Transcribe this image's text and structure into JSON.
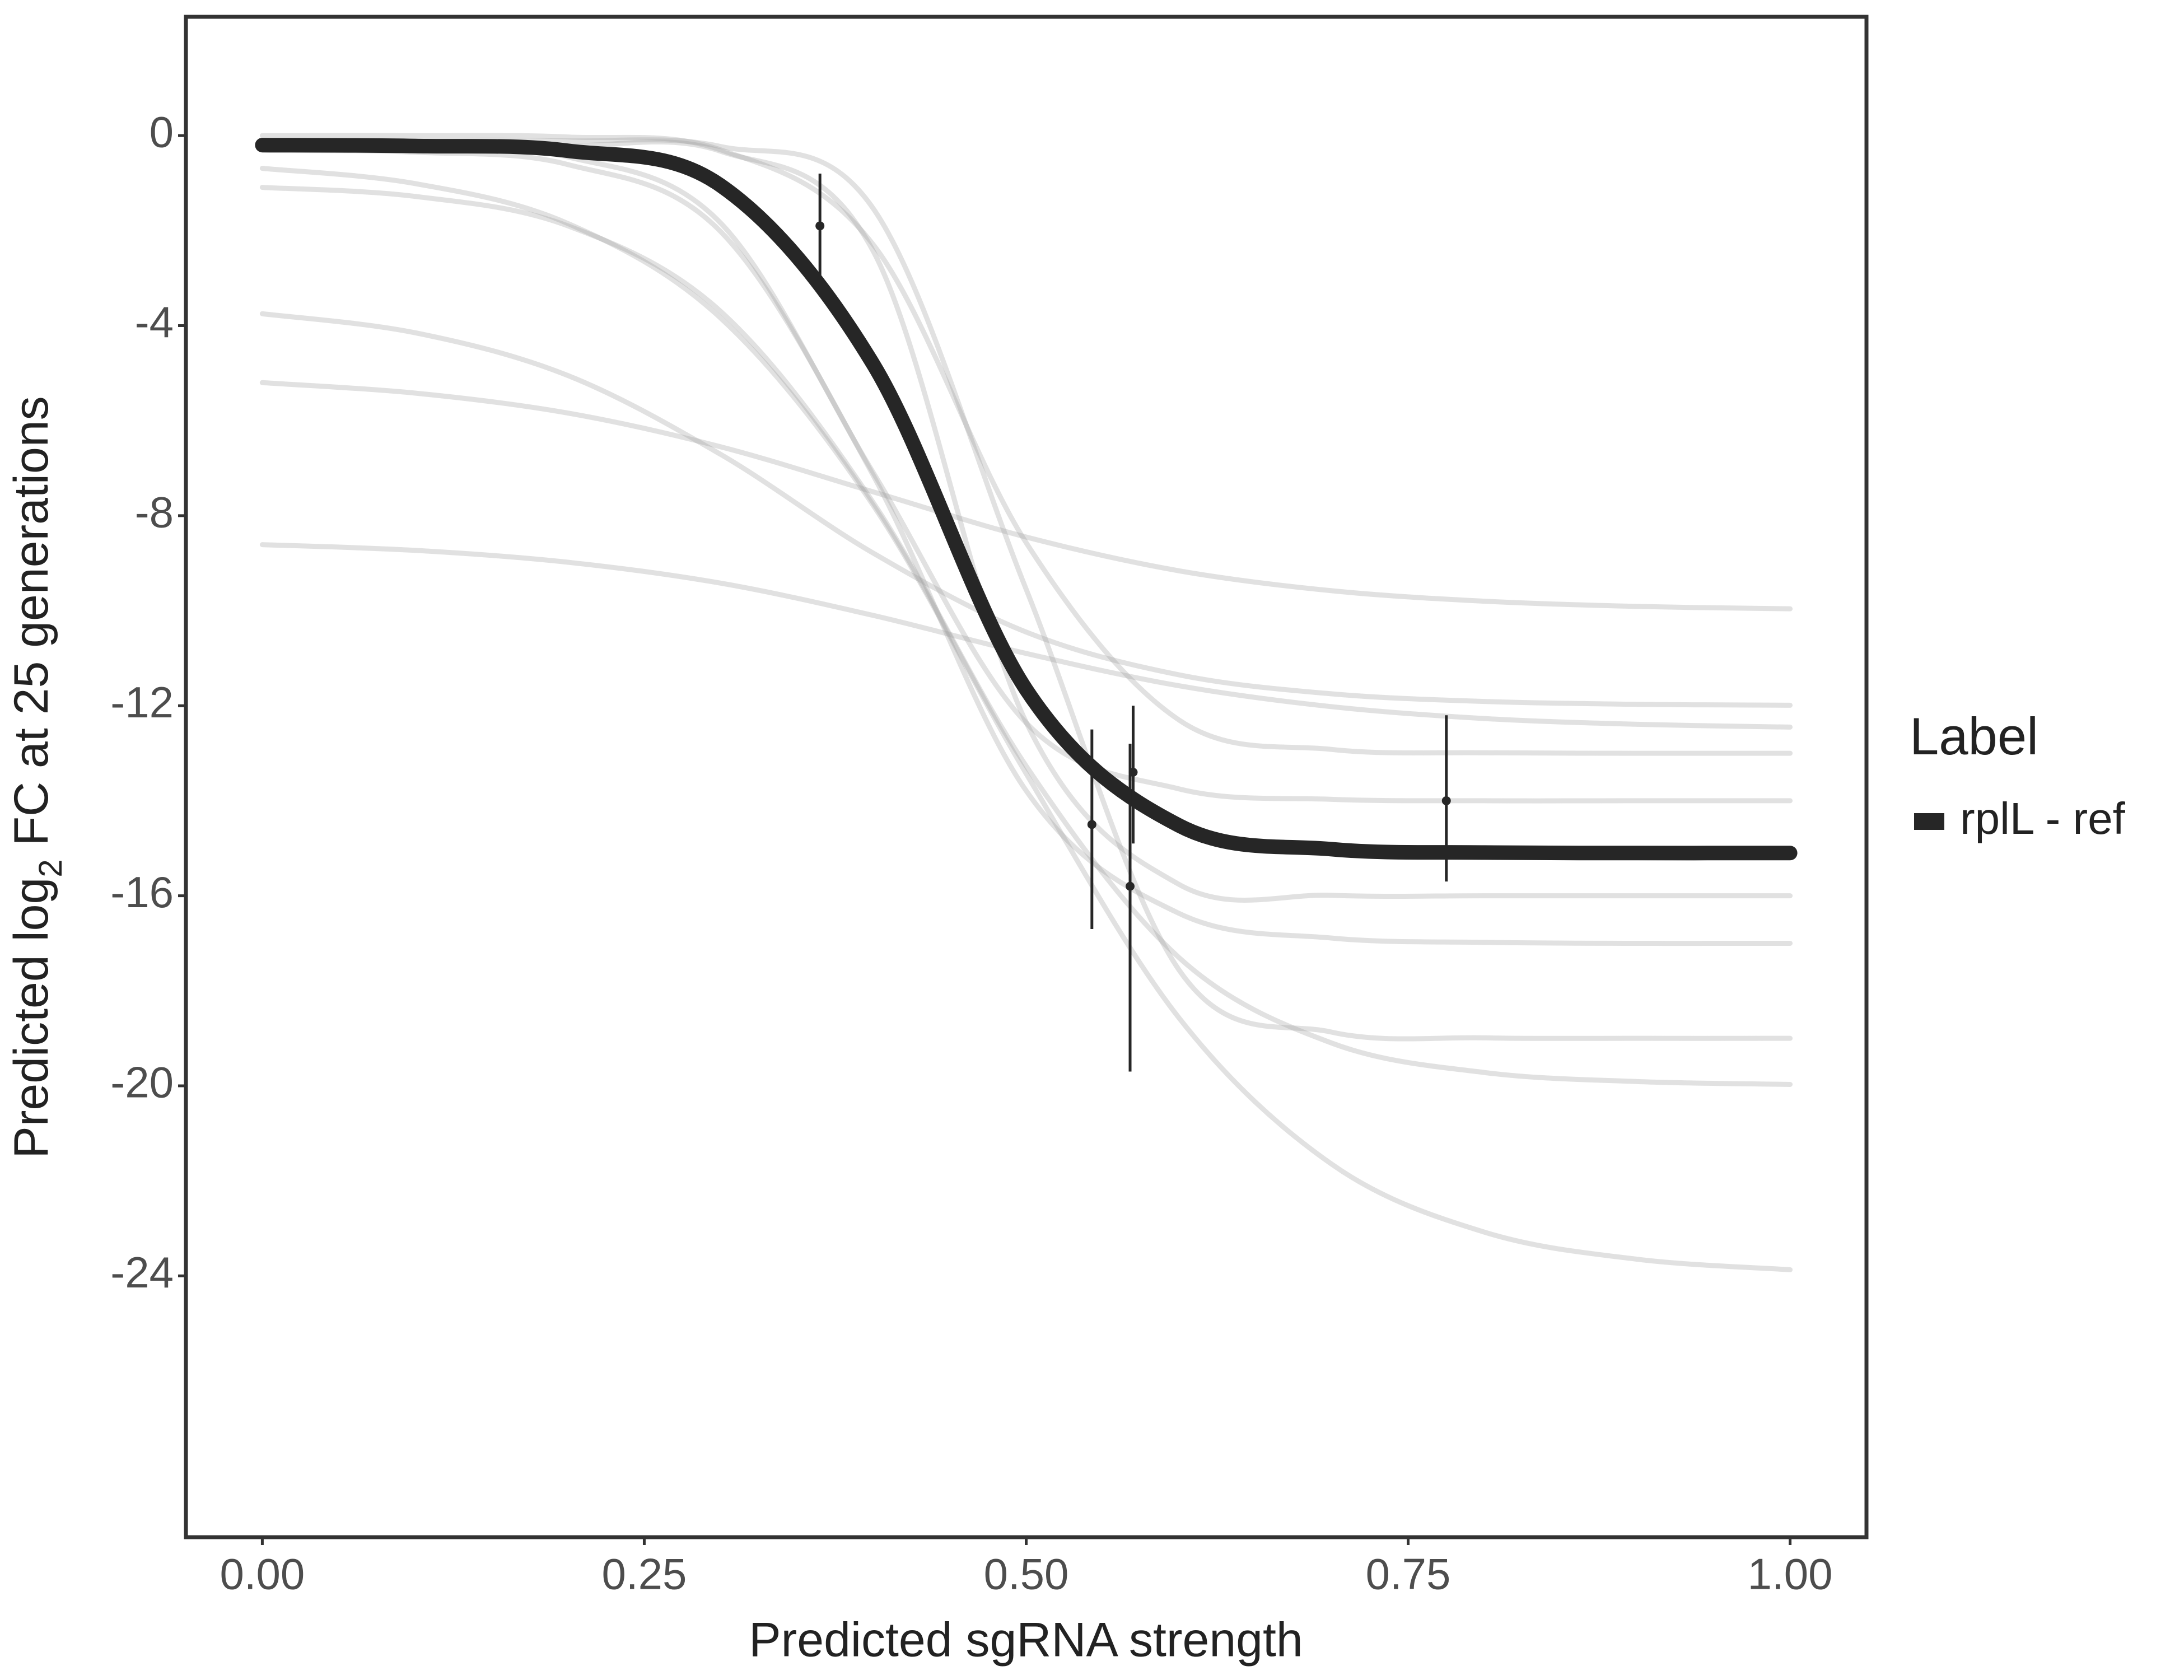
{
  "chart_data": {
    "type": "line",
    "x_label": "Predicted sgRNA strength",
    "y_label": {
      "prefix": "Predicted  log",
      "subscript": "2",
      "suffix": " FC at 25 generations"
    },
    "legend_title": "Label",
    "x": [
      0,
      0.1,
      0.2,
      0.3,
      0.4,
      0.5,
      0.6,
      0.7,
      0.8,
      0.9,
      1
    ],
    "xlim": [
      -0.05,
      1.05
    ],
    "xticks": [
      {
        "value": 0,
        "label": "0.00"
      },
      0.25,
      {
        "value": 0.5,
        "label": "0.50"
      },
      0.75,
      {
        "value": 1,
        "label": "1.00"
      }
    ],
    "ylim": [
      -29.5,
      2.5
    ],
    "yticks": [
      0,
      -4,
      -8,
      -12,
      -16,
      -20,
      -24
    ],
    "series": [
      {
        "name": "rplL - ref",
        "color": "#262626",
        "values": [
          -0.2,
          -0.22,
          -0.32,
          -1.05,
          -4.82,
          -11.66,
          -14.52,
          -15.02,
          -15.09,
          -15.1,
          -15.1
        ]
      }
    ],
    "draws": {
      "color": "#9a9a9a",
      "values": [
        [
          0,
          0,
          -0.03,
          -0.3,
          -2.3,
          -8.57,
          -12.3,
          -12.92,
          -12.99,
          -13,
          -13
        ],
        [
          -0.31,
          -0.35,
          -0.61,
          -2.02,
          -7.16,
          -13.79,
          -16.37,
          -16.89,
          -16.98,
          -17,
          -17
        ],
        [
          -1.09,
          -1.28,
          -1.9,
          -3.7,
          -7.73,
          -13.27,
          -17.3,
          -19.1,
          -19.72,
          -19.91,
          -19.97
        ],
        [
          -3.75,
          -4.15,
          -5.05,
          -6.71,
          -8.79,
          -10.45,
          -11.35,
          -11.75,
          -11.91,
          -11.97,
          -11.99
        ],
        [
          -0.1,
          -0.1,
          -0.11,
          -0.23,
          -1.54,
          -9.55,
          -17.56,
          -18.87,
          -18.99,
          -19,
          -19
        ],
        [
          -5.2,
          -5.42,
          -5.84,
          -6.55,
          -7.5,
          -8.45,
          -9.16,
          -9.58,
          -9.8,
          -9.91,
          -9.96
        ],
        [
          -0.69,
          -1.01,
          -1.85,
          -3.84,
          -7.79,
          -13.43,
          -18.57,
          -21.65,
          -23.08,
          -23.65,
          -23.87
        ],
        [
          -0.2,
          -0.23,
          -0.45,
          -1.84,
          -7.1,
          -12.36,
          -13.75,
          -13.97,
          -14,
          -14,
          -14
        ],
        [
          -8.61,
          -8.73,
          -8.98,
          -9.42,
          -10.1,
          -10.9,
          -11.58,
          -12.02,
          -12.27,
          -12.39,
          -12.45
        ],
        [
          -0.2,
          -0.2,
          -0.21,
          -0.33,
          -2.44,
          -12.35,
          -15.76,
          -15.99,
          -16,
          -16,
          -16
        ]
      ]
    },
    "points": {
      "color": "#262626",
      "x": [
        0.365,
        0.543,
        0.57,
        0.568,
        0.775
      ],
      "y": [
        -1.9,
        -14.5,
        -13.4,
        -15.8,
        -14.0
      ],
      "lower": [
        -3.0,
        -16.7,
        -14.9,
        -19.7,
        -15.7
      ],
      "upper": [
        -0.8,
        -12.5,
        -12.0,
        -12.8,
        -12.2
      ]
    }
  }
}
